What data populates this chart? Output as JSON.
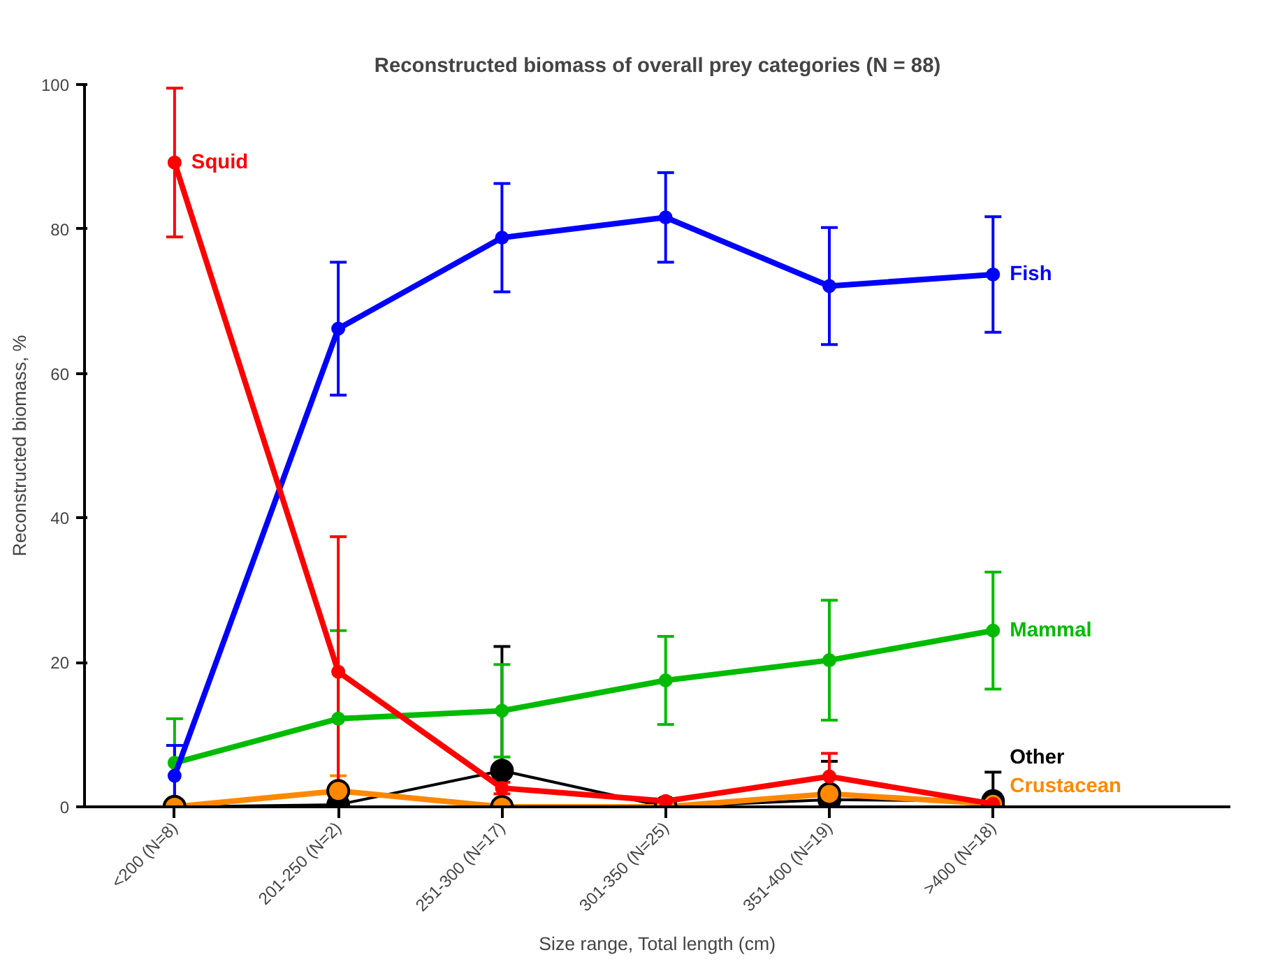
{
  "chart_data": {
    "type": "line",
    "title": "Reconstructed biomass of overall prey categories (N = 88)",
    "xlabel": "Size range, Total length (cm)",
    "ylabel": "Reconstructed biomass, %",
    "categories": [
      "<200 (N=8)",
      "201-250 (N=2)",
      "251-300 (N=17)",
      "301-350 (N=25)",
      "351-400 (N=19)",
      ">400 (N=18)"
    ],
    "ylim": [
      0,
      100
    ],
    "yticks": [
      0,
      20,
      40,
      60,
      80,
      100
    ],
    "grid": false,
    "marker": "circle",
    "line_style": "solid",
    "series": [
      {
        "name": "Squid",
        "color": "#ff0000",
        "values": [
          89.2,
          18.7,
          2.6,
          0.8,
          4.2,
          0.4
        ],
        "errors": [
          10.3,
          18.7,
          0.8,
          null,
          3.2,
          null
        ]
      },
      {
        "name": "Fish",
        "color": "#0000ff",
        "values": [
          4.3,
          66.2,
          78.8,
          81.6,
          72.1,
          73.7
        ],
        "errors": [
          4.2,
          9.2,
          7.5,
          6.2,
          8.1,
          8.0
        ]
      },
      {
        "name": "Mammal",
        "color": "#00bb00",
        "values": [
          6.1,
          12.2,
          13.3,
          17.5,
          20.3,
          24.4
        ],
        "errors": [
          6.1,
          12.2,
          6.4,
          6.1,
          8.3,
          8.1
        ]
      },
      {
        "name": "Other",
        "color": "#000000",
        "values": [
          0,
          0.3,
          5.0,
          0,
          1.0,
          0.8
        ],
        "errors": [
          null,
          null,
          [
            5.0,
            22.2
          ],
          null,
          [
            1.0,
            6.3
          ],
          [
            0.8,
            4.8
          ]
        ]
      },
      {
        "name": "Crustacean",
        "color": "#ff8800",
        "values": [
          0,
          2.2,
          0,
          0,
          1.8,
          0.4
        ],
        "errors": [
          null,
          2.1,
          null,
          null,
          null,
          null
        ]
      }
    ]
  }
}
